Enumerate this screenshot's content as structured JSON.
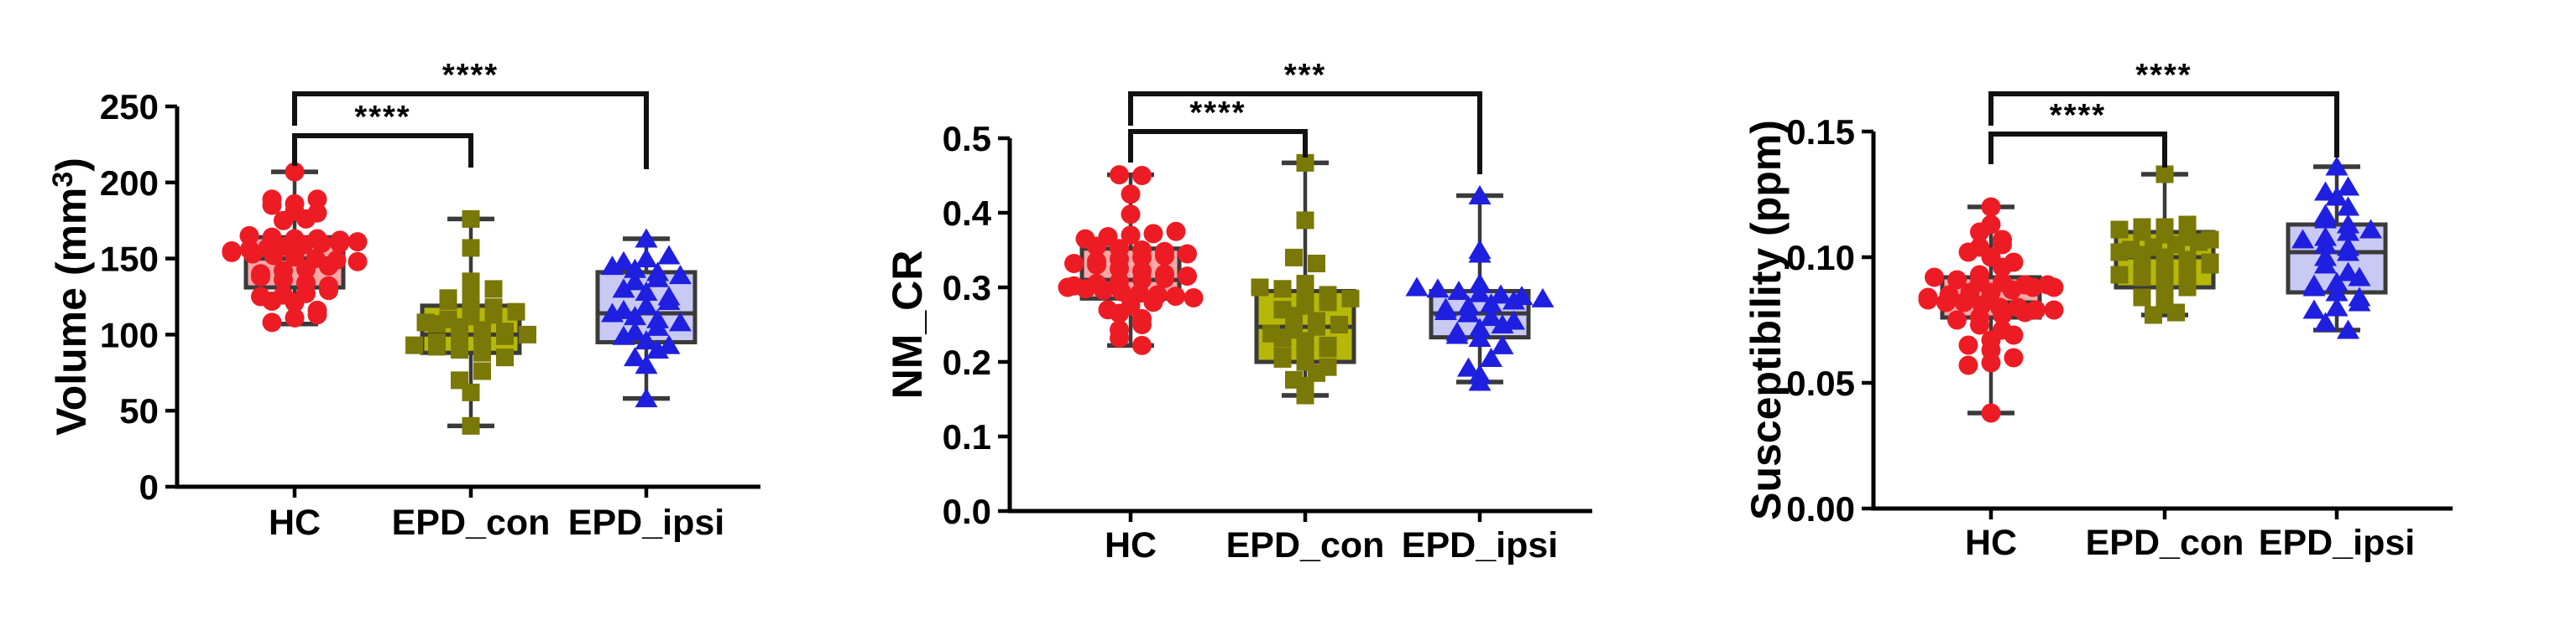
{
  "figure": {
    "background": "#ffffff",
    "groups": [
      "HC",
      "EPD_con",
      "EPD_ipsi"
    ],
    "palette": {
      "axis_color": "#000000",
      "text_color": "#000000",
      "box_border_color": "#3a3a3a",
      "bracket_color": "#111111",
      "hc_marker": "#ed1c24",
      "hc_fill": "#f9a7a7",
      "epd_con_marker": "#7a7806",
      "epd_con_fill": "#b5b808",
      "epd_ipsi_marker": "#1f1fe0",
      "epd_ipsi_fill": "#c8caf4"
    }
  },
  "chart_data": [
    {
      "type": "box-scatter",
      "title": "",
      "ylabel": {
        "pre": "Volume (mm",
        "sup": "3",
        "post": ")"
      },
      "ylim": [
        0,
        250
      ],
      "grid": false,
      "legend": "none",
      "yticks": [
        {
          "v": 0,
          "t": "0"
        },
        {
          "v": 50,
          "t": "50"
        },
        {
          "v": 100,
          "t": "100"
        },
        {
          "v": 150,
          "t": "150"
        },
        {
          "v": 200,
          "t": "200"
        },
        {
          "v": 250,
          "t": "250"
        }
      ],
      "categories": [
        "HC",
        "EPD_con",
        "EPD_ipsi"
      ],
      "series": [
        {
          "name": "HC",
          "marker": "circle",
          "marker_color": "#ed1c24",
          "box_fill": "#f9a7a7",
          "box": {
            "min": 107,
            "q1": 131,
            "median": 150,
            "q3": 164,
            "max": 207
          },
          "points": [
            207,
            189,
            186,
            189,
            185,
            181,
            180,
            176,
            175,
            165,
            164,
            163,
            163,
            162,
            161,
            160,
            160,
            159,
            158,
            157,
            156,
            155,
            154,
            153,
            152,
            151,
            150,
            149,
            148,
            145,
            143,
            142,
            140,
            138,
            136,
            134,
            132,
            129,
            127,
            126,
            125,
            122,
            121,
            116,
            113,
            111,
            108
          ]
        },
        {
          "name": "EPD_con",
          "marker": "square",
          "marker_color": "#7a7806",
          "box_fill": "#b5b808",
          "box": {
            "min": 40,
            "q1": 88,
            "median": 100,
            "q3": 119,
            "max": 176
          },
          "points": [
            176,
            157,
            135,
            130,
            126,
            124,
            122,
            120,
            118,
            115,
            113,
            112,
            110,
            108,
            107,
            105,
            103,
            102,
            100,
            99,
            97,
            96,
            95,
            93,
            92,
            90,
            88,
            85,
            76,
            70,
            62,
            40
          ]
        },
        {
          "name": "EPD_ipsi",
          "marker": "triangle",
          "marker_color": "#1f1fe0",
          "box_fill": "#c8caf4",
          "box": {
            "min": 58,
            "q1": 95,
            "median": 114,
            "q3": 141,
            "max": 163
          },
          "points": [
            163,
            152,
            150,
            148,
            145,
            143,
            141,
            139,
            137,
            135,
            130,
            128,
            125,
            122,
            119,
            116,
            114,
            112,
            110,
            108,
            105,
            102,
            99,
            96,
            93,
            90,
            85,
            80,
            58
          ]
        }
      ],
      "comparisons": [
        {
          "from": 0,
          "to": 1,
          "label": "****"
        },
        {
          "from": 0,
          "to": 2,
          "label": "****"
        }
      ]
    },
    {
      "type": "box-scatter",
      "title": "",
      "ylabel": {
        "pre": "NM_CR",
        "sup": "",
        "post": ""
      },
      "ylim": [
        0,
        0.5
      ],
      "grid": false,
      "legend": "none",
      "yticks": [
        {
          "v": 0,
          "t": "0.0"
        },
        {
          "v": 0.1,
          "t": "0.1"
        },
        {
          "v": 0.2,
          "t": "0.2"
        },
        {
          "v": 0.3,
          "t": "0.3"
        },
        {
          "v": 0.4,
          "t": "0.4"
        },
        {
          "v": 0.5,
          "t": "0.5"
        }
      ],
      "categories": [
        "HC",
        "EPD_con",
        "EPD_ipsi"
      ],
      "series": [
        {
          "name": "HC",
          "marker": "circle",
          "marker_color": "#ed1c24",
          "box_fill": "#f9a7a7",
          "box": {
            "min": 0.222,
            "q1": 0.285,
            "median": 0.31,
            "q3": 0.352,
            "max": 0.451
          },
          "points": [
            0.451,
            0.45,
            0.425,
            0.398,
            0.375,
            0.372,
            0.37,
            0.368,
            0.365,
            0.355,
            0.352,
            0.35,
            0.348,
            0.345,
            0.342,
            0.34,
            0.338,
            0.335,
            0.332,
            0.33,
            0.325,
            0.322,
            0.318,
            0.315,
            0.312,
            0.31,
            0.308,
            0.305,
            0.302,
            0.3,
            0.298,
            0.296,
            0.294,
            0.292,
            0.29,
            0.288,
            0.286,
            0.28,
            0.275,
            0.27,
            0.265,
            0.258,
            0.25,
            0.243,
            0.232,
            0.222
          ]
        },
        {
          "name": "EPD_con",
          "marker": "square",
          "marker_color": "#7a7806",
          "box_fill": "#b5b808",
          "box": {
            "min": 0.155,
            "q1": 0.2,
            "median": 0.247,
            "q3": 0.295,
            "max": 0.467
          },
          "points": [
            0.467,
            0.39,
            0.34,
            0.332,
            0.305,
            0.3,
            0.298,
            0.295,
            0.29,
            0.285,
            0.28,
            0.275,
            0.27,
            0.262,
            0.255,
            0.25,
            0.247,
            0.243,
            0.238,
            0.232,
            0.228,
            0.222,
            0.218,
            0.213,
            0.208,
            0.204,
            0.2,
            0.193,
            0.185,
            0.176,
            0.168,
            0.155
          ]
        },
        {
          "name": "EPD_ipsi",
          "marker": "triangle",
          "marker_color": "#1f1fe0",
          "box_fill": "#c8caf4",
          "box": {
            "min": 0.173,
            "q1": 0.233,
            "median": 0.265,
            "q3": 0.295,
            "max": 0.423
          },
          "points": [
            0.423,
            0.35,
            0.345,
            0.305,
            0.3,
            0.298,
            0.295,
            0.292,
            0.29,
            0.288,
            0.285,
            0.282,
            0.278,
            0.275,
            0.272,
            0.268,
            0.265,
            0.26,
            0.255,
            0.25,
            0.245,
            0.24,
            0.236,
            0.232,
            0.222,
            0.205,
            0.192,
            0.183,
            0.173
          ]
        }
      ],
      "comparisons": [
        {
          "from": 0,
          "to": 1,
          "label": "****"
        },
        {
          "from": 0,
          "to": 2,
          "label": "***"
        }
      ]
    },
    {
      "type": "box-scatter",
      "title": "",
      "ylabel": {
        "pre": "Susceptibility (ppm)",
        "sup": "",
        "post": ""
      },
      "ylim": [
        0,
        0.15
      ],
      "grid": false,
      "legend": "none",
      "yticks": [
        {
          "v": 0,
          "t": "0.00"
        },
        {
          "v": 0.05,
          "t": "0.05"
        },
        {
          "v": 0.1,
          "t": "0.10"
        },
        {
          "v": 0.15,
          "t": "0.15"
        }
      ],
      "categories": [
        "HC",
        "EPD_con",
        "EPD_ipsi"
      ],
      "series": [
        {
          "name": "HC",
          "marker": "circle",
          "marker_color": "#ed1c24",
          "box_fill": "#f9a7a7",
          "box": {
            "min": 0.038,
            "q1": 0.076,
            "median": 0.082,
            "q3": 0.092,
            "max": 0.12
          },
          "points": [
            0.12,
            0.113,
            0.11,
            0.107,
            0.105,
            0.104,
            0.102,
            0.1,
            0.098,
            0.096,
            0.093,
            0.092,
            0.091,
            0.09,
            0.09,
            0.089,
            0.089,
            0.088,
            0.088,
            0.087,
            0.086,
            0.086,
            0.085,
            0.084,
            0.083,
            0.082,
            0.082,
            0.081,
            0.08,
            0.08,
            0.079,
            0.079,
            0.078,
            0.077,
            0.076,
            0.075,
            0.073,
            0.071,
            0.069,
            0.067,
            0.065,
            0.063,
            0.06,
            0.058,
            0.057,
            0.038
          ]
        },
        {
          "name": "EPD_con",
          "marker": "square",
          "marker_color": "#7a7806",
          "box_fill": "#b5b808",
          "box": {
            "min": 0.077,
            "q1": 0.088,
            "median": 0.1,
            "q3": 0.11,
            "max": 0.133
          },
          "points": [
            0.133,
            0.113,
            0.112,
            0.112,
            0.111,
            0.11,
            0.109,
            0.108,
            0.107,
            0.106,
            0.105,
            0.104,
            0.103,
            0.102,
            0.101,
            0.1,
            0.099,
            0.098,
            0.097,
            0.096,
            0.095,
            0.094,
            0.093,
            0.092,
            0.091,
            0.09,
            0.088,
            0.086,
            0.084,
            0.081,
            0.078,
            0.077
          ]
        },
        {
          "name": "EPD_ipsi",
          "marker": "triangle",
          "marker_color": "#1f1fe0",
          "box_fill": "#c8caf4",
          "box": {
            "min": 0.071,
            "q1": 0.086,
            "median": 0.102,
            "q3": 0.113,
            "max": 0.136
          },
          "points": [
            0.136,
            0.128,
            0.126,
            0.124,
            0.12,
            0.117,
            0.115,
            0.113,
            0.111,
            0.11,
            0.108,
            0.107,
            0.105,
            0.104,
            0.102,
            0.1,
            0.097,
            0.094,
            0.092,
            0.09,
            0.089,
            0.088,
            0.086,
            0.084,
            0.082,
            0.08,
            0.079,
            0.074,
            0.071
          ]
        }
      ],
      "comparisons": [
        {
          "from": 0,
          "to": 1,
          "label": "****"
        },
        {
          "from": 0,
          "to": 2,
          "label": "****"
        }
      ]
    }
  ]
}
